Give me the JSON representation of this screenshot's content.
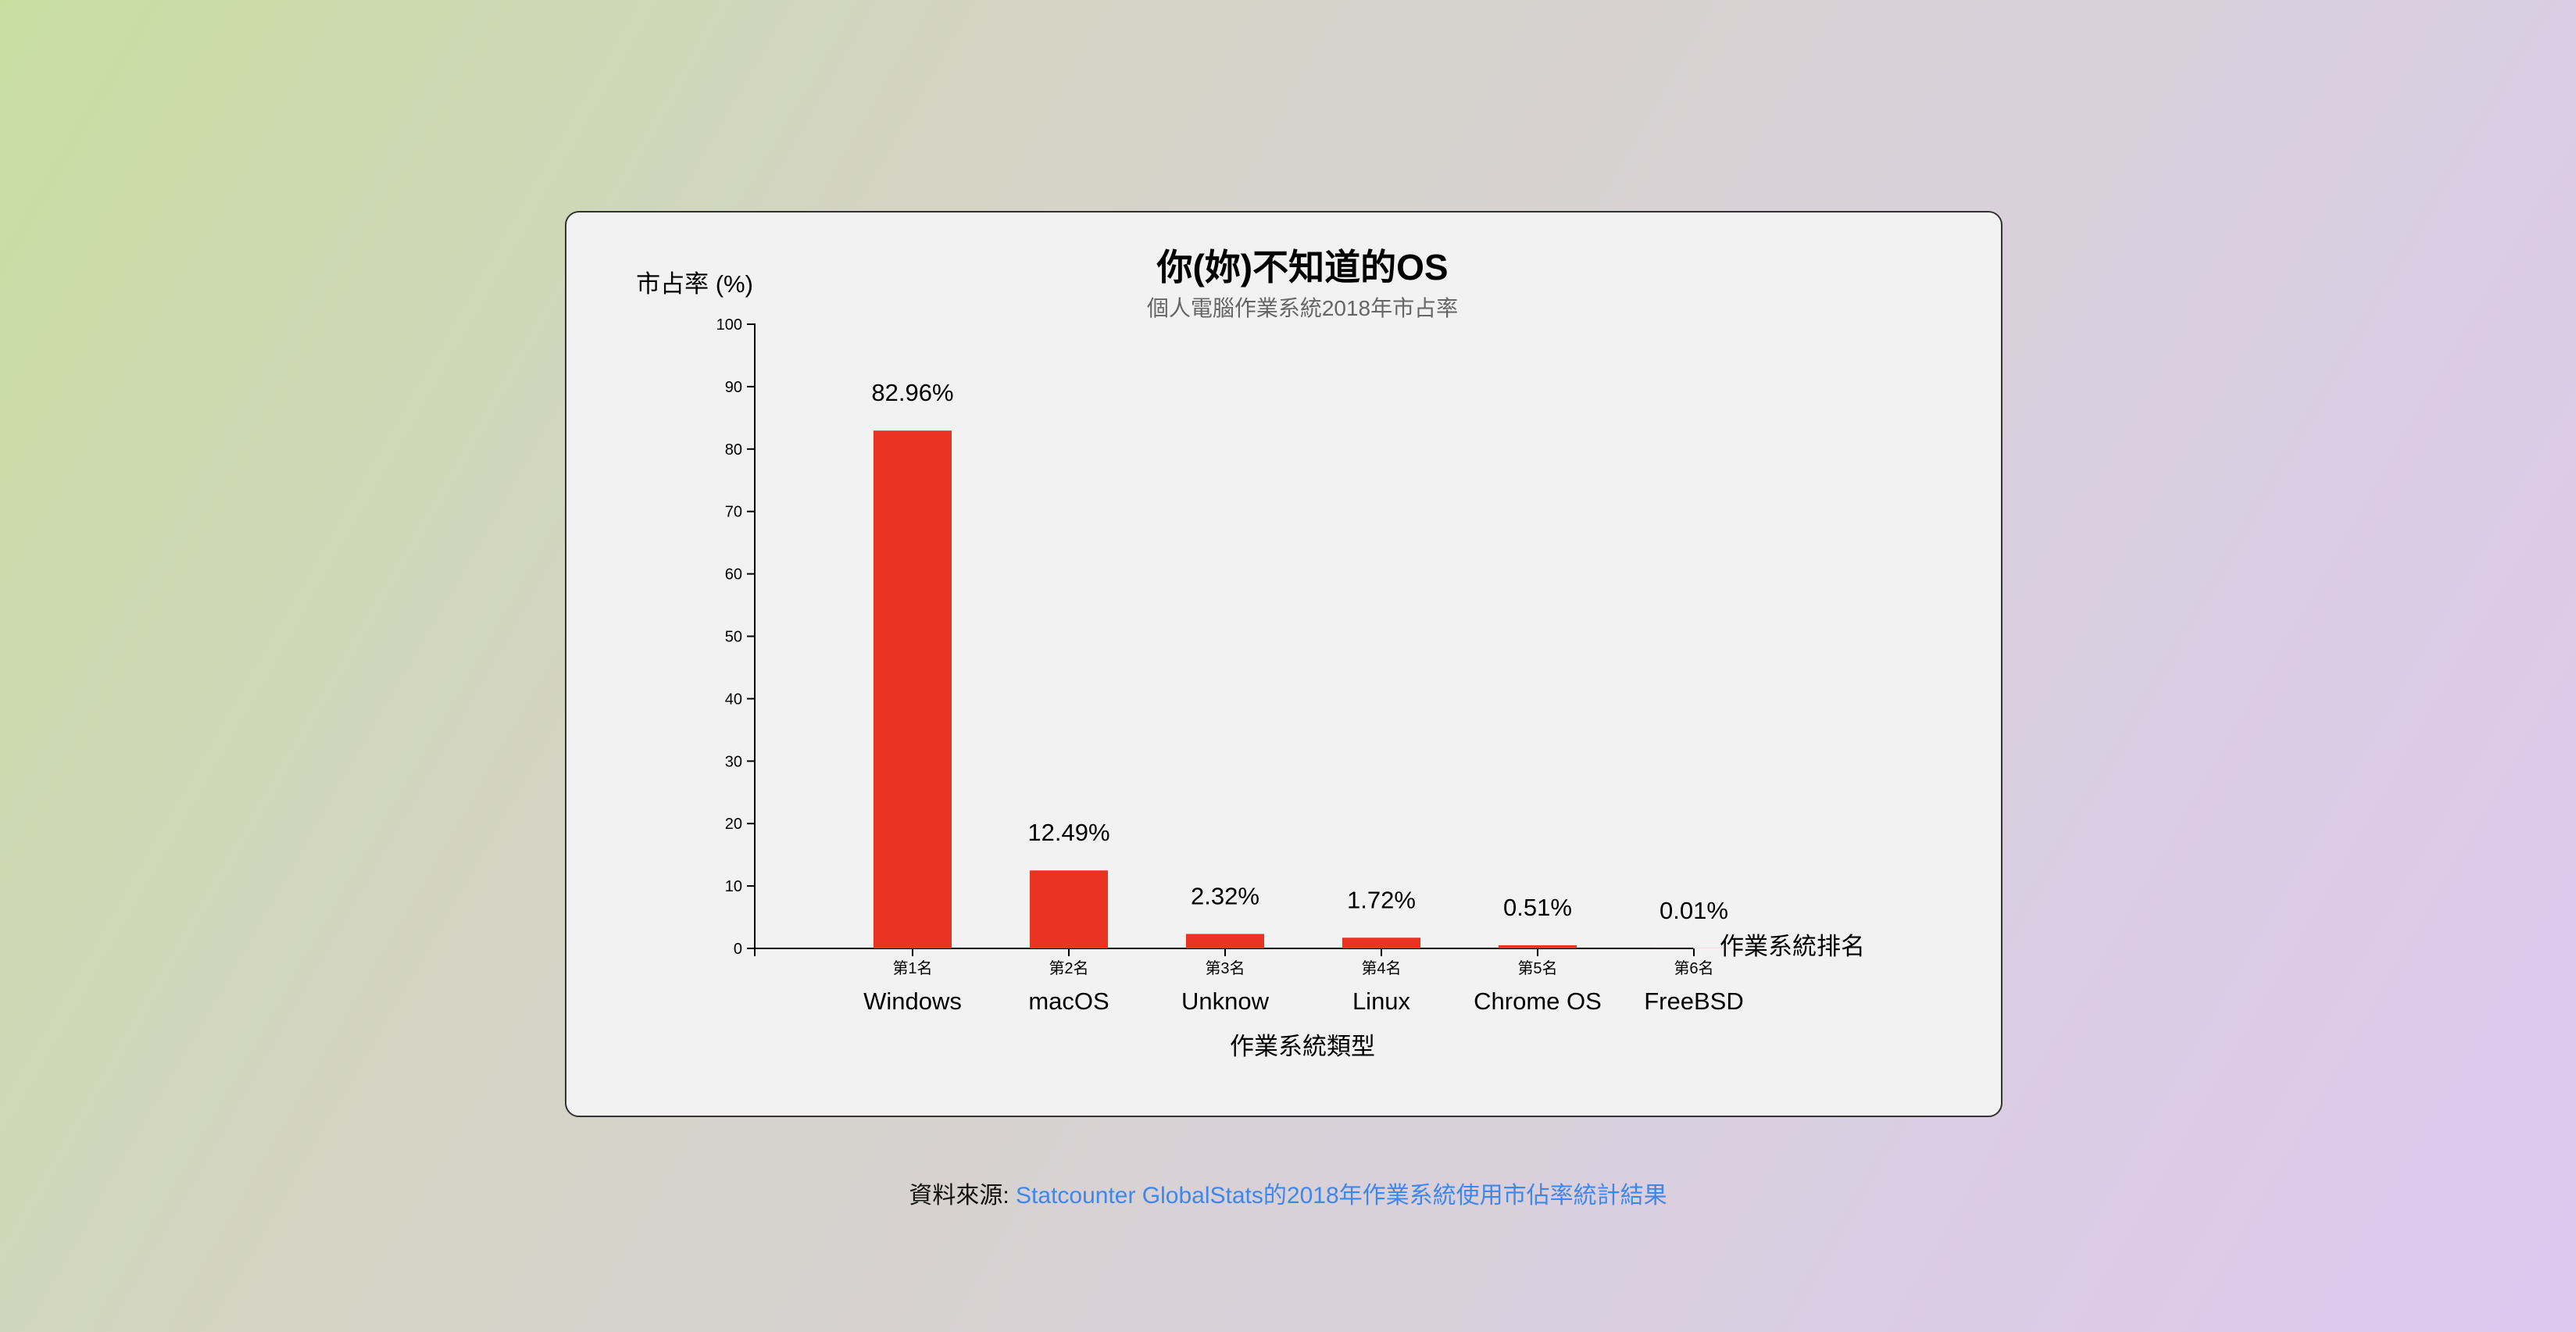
{
  "chart_data": {
    "type": "bar",
    "title": "你(妳)不知道的OS",
    "subtitle": "個人電腦作業系統2018年市占率",
    "ylabel": "市占率 (%)",
    "xlabel": "作業系統類型",
    "x_axis_end_label": "作業系統排名",
    "ylim": [
      0,
      100
    ],
    "yticks": [
      "0",
      "10",
      "20",
      "30",
      "40",
      "50",
      "60",
      "70",
      "80",
      "90",
      "100"
    ],
    "categories": [
      "Windows",
      "macOS",
      "Unknow",
      "Linux",
      "Chrome OS",
      "FreeBSD"
    ],
    "ranks": [
      "第1名",
      "第2名",
      "第3名",
      "第4名",
      "第5名",
      "第6名"
    ],
    "values": [
      82.96,
      12.49,
      2.32,
      1.72,
      0.51,
      0.01
    ],
    "value_labels": [
      "82.96%",
      "12.49%",
      "2.32%",
      "1.72%",
      "0.51%",
      "0.01%"
    ],
    "bar_color": "#e93323",
    "grid": false
  },
  "source": {
    "prefix": "資料來源:",
    "link_text": "Statcounter GlobalStats的2018年作業系統使用市佔率統計結果",
    "link_color": "#3f87e8"
  }
}
